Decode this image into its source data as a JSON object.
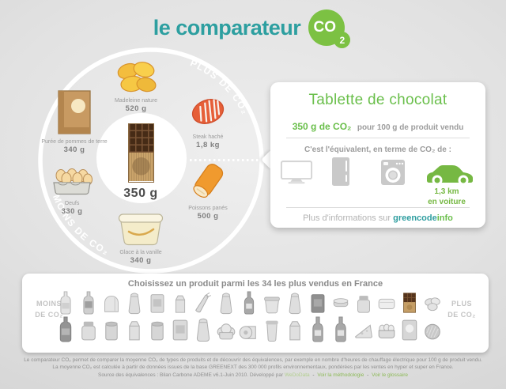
{
  "header": {
    "title": "le comparateur",
    "badge_main": "CO",
    "badge_sub": "2"
  },
  "wheel": {
    "plus_label": "PLUS DE CO₂",
    "moins_label": "MOINS DE CO₂",
    "center_weight": "350 g",
    "products": [
      {
        "label": "Madeleine nature",
        "weight": "520 g"
      },
      {
        "label": "Steak haché",
        "weight": "1,8 kg"
      },
      {
        "label": "Poissons panés",
        "weight": "500 g"
      },
      {
        "label": "Glace à la vanille",
        "weight": "340 g"
      },
      {
        "label": "Oeufs",
        "weight": "330 g"
      },
      {
        "label": "Purée de pommes de terre",
        "weight": "340 g"
      }
    ]
  },
  "card": {
    "title": "Tablette de chocolat",
    "co2_value": "350 g de CO₂",
    "co2_suffix": "pour 100 g de produit vendu",
    "equivalent_label": "C'est l'équivalent, en terme de CO₂ de :",
    "car_value": "1,3 km",
    "car_unit": "en voiture",
    "more_info_prefix": "Plus d'informations sur",
    "brand_teal": "greencode",
    "brand_green": "info"
  },
  "products_bar": {
    "title": "Choisissez un produit parmi les 34 les plus vendus en France",
    "left_label_line1": "MOINS",
    "left_label_line2": "DE CO₂",
    "right_label_line1": "PLUS",
    "right_label_line2": "DE CO₂",
    "row1_icons": [
      "water-bottle",
      "soda-bottle",
      "sandwich-bread",
      "flour-bag",
      "ravioli-box",
      "juice-carton",
      "leeks",
      "rice-bag",
      "wine-bottle",
      "butter-tub",
      "sugar-bag",
      "coffee-pack",
      "camembert-box",
      "jam-jar",
      "fresh-tray",
      "chocolate-tablet",
      "madeleines"
    ],
    "row2_icons": [
      "dark-bottle",
      "yogurt-jar",
      "preserve-can",
      "milk-carton",
      "tin-can",
      "cereal-box",
      "frozen-bag",
      "brioche",
      "paper-towel-roll",
      "yogurt-pot",
      "cream-carton",
      "oil-bottle",
      "spirit-bottle",
      "cheese-wedge",
      "egg-box",
      "flour-pack",
      "ground-steak"
    ]
  },
  "footer": {
    "line1": "Le comparateur CO₂ permet de comparer la moyenne CO₂ de types de produits et de découvrir des équivalences, par exemple en nombre d'heures de chauffage électrique pour 100 g de produit vendu.",
    "line2": "La moyenne CO₂ est calculée à partir de données issues de la base GREENEXT des 300 000 profils environnementaux, pondérées par les ventes en hyper et super en France.",
    "line3_prefix": "Source des équivalences : Bilan Carbone ADEME v6.1-Juin 2010. Développé par",
    "link_wedodata": "WeDoData",
    "separator": "-",
    "link_methodology": "Voir la méthodologie",
    "link_glossary": "Voir le glossaire"
  },
  "colors": {
    "teal": "#2d9fa0",
    "green": "#7cc143",
    "card_green": "#6abf4b",
    "gray_text": "#9c9c9c"
  }
}
